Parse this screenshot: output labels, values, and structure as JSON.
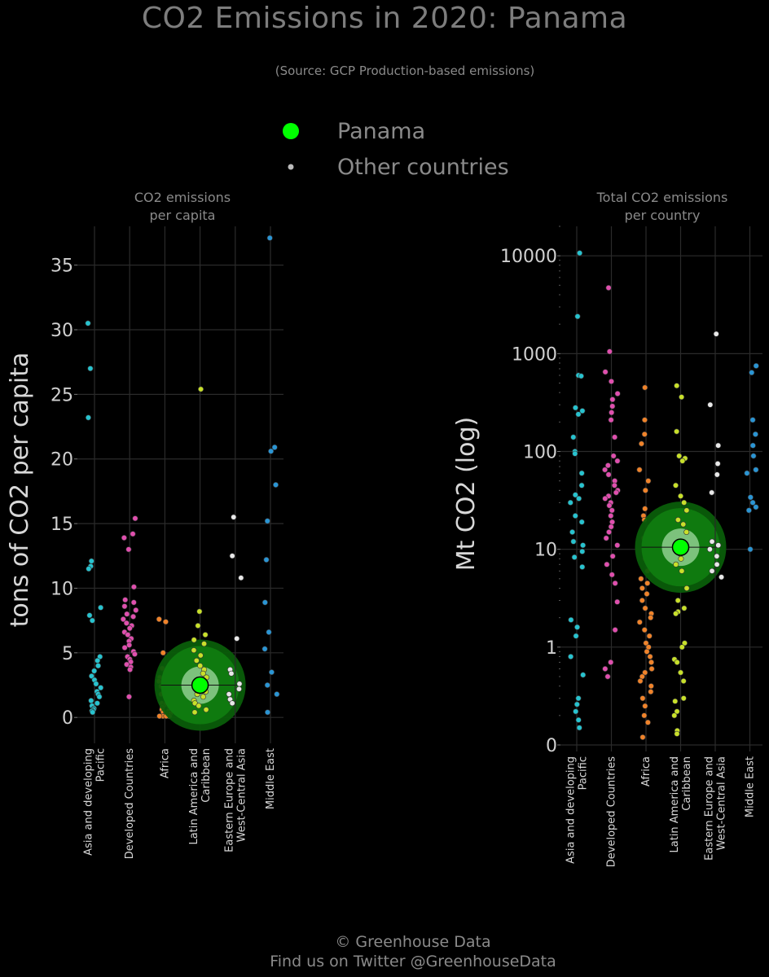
{
  "title": "CO2 Emissions in 2020: Panama",
  "subtitle": "(Source: GCP Production-based emissions)",
  "legend": {
    "highlight": "Panama",
    "others": "Other countries"
  },
  "footer": {
    "line1": "© Greenhouse Data",
    "line2": "Find us on Twitter @GreenhouseData"
  },
  "colors": {
    "background": "#000000",
    "highlight": "#00ff00",
    "halo": "#0b6e0b",
    "Asia and developing Pacific": "#27c3cf",
    "Developed Countries": "#e04fae",
    "Africa": "#f0832a",
    "Latin America and Caribbean": "#c8e02a",
    "Eastern Europe and West-Central Asia": "#e8e8e8",
    "Middle East": "#2a95d4"
  },
  "chart_data": [
    {
      "type": "scatter",
      "panel_title": [
        "CO2 emissions",
        "per capita"
      ],
      "ylabel": "tons of CO2 per capita",
      "scale": "linear",
      "ylim": [
        -1.5,
        38
      ],
      "yticks": [
        0,
        5,
        10,
        15,
        20,
        25,
        30,
        35
      ],
      "ytick_labels": [
        "0",
        "5",
        "10",
        "15",
        "20",
        "25",
        "30",
        "35"
      ],
      "grid": true,
      "categories": [
        {
          "key": "Asia and developing Pacific",
          "label": [
            "Asia and developing",
            "Pacific"
          ],
          "values": [
            30.5,
            27.0,
            23.2,
            12.1,
            11.7,
            11.5,
            8.5,
            7.9,
            7.5,
            4.7,
            4.4,
            4.0,
            3.6,
            3.2,
            2.9,
            2.6,
            2.3,
            2.0,
            1.8,
            1.6,
            1.3,
            1.1,
            0.9,
            0.7,
            0.6,
            0.5,
            0.4
          ]
        },
        {
          "key": "Developed Countries",
          "label": [
            "Developed Countries"
          ],
          "values": [
            15.4,
            14.2,
            13.9,
            13.0,
            10.1,
            9.1,
            8.9,
            8.6,
            8.3,
            8.0,
            7.8,
            7.6,
            7.3,
            7.1,
            6.9,
            6.6,
            6.4,
            6.1,
            5.9,
            5.6,
            5.4,
            5.1,
            4.9,
            4.7,
            4.5,
            4.3,
            4.1,
            3.9,
            3.7,
            1.6
          ]
        },
        {
          "key": "Africa",
          "label": [
            "Africa"
          ],
          "values": [
            7.6,
            7.4,
            5.0,
            3.8,
            3.5,
            3.1,
            2.8,
            2.6,
            2.4,
            2.2,
            2.0,
            1.8,
            1.6,
            1.4,
            1.3,
            1.1,
            1.0,
            0.9,
            0.8,
            0.7,
            0.6,
            0.5,
            0.4,
            0.3,
            0.3,
            0.2,
            0.2,
            0.1,
            0.1,
            0.1,
            0.1
          ]
        },
        {
          "key": "Latin America and Caribbean",
          "label": [
            "Latin America and",
            "Caribbean"
          ],
          "values": [
            25.4,
            8.2,
            7.1,
            6.4,
            6.0,
            5.7,
            5.2,
            4.8,
            4.4,
            4.0,
            3.7,
            3.4,
            3.1,
            2.8,
            2.6,
            2.4,
            2.2,
            2.0,
            1.8,
            1.6,
            1.3,
            1.1,
            0.9,
            0.6,
            0.4
          ],
          "highlight": {
            "name": "Panama",
            "value": 2.5
          }
        },
        {
          "key": "Eastern Europe and West-Central Asia",
          "label": [
            "Eastern Europe and",
            "West-Central Asia"
          ],
          "values": [
            15.5,
            12.5,
            10.8,
            6.1,
            3.7,
            3.4,
            2.6,
            2.2,
            1.8,
            1.4,
            1.1
          ]
        },
        {
          "key": "Middle East",
          "label": [
            "Middle East"
          ],
          "values": [
            37.1,
            20.9,
            20.6,
            18.0,
            15.2,
            12.2,
            8.9,
            6.6,
            5.3,
            3.5,
            2.5,
            1.8,
            0.4
          ]
        }
      ]
    },
    {
      "type": "scatter",
      "panel_title": [
        "Total CO2 emissions",
        "per country"
      ],
      "ylabel": "Mt CO2 (log)",
      "scale": "log",
      "ylim": [
        0.1,
        20000
      ],
      "yticks": [
        0.1,
        1,
        10,
        100,
        1000,
        10000
      ],
      "ytick_labels": [
        "0",
        "1",
        "10",
        "100",
        "1000",
        "10000"
      ],
      "grid": true,
      "categories": [
        {
          "key": "Asia and developing Pacific",
          "label": [
            "Asia and developing",
            "Pacific"
          ],
          "values": [
            10670,
            2400,
            600,
            590,
            280,
            260,
            240,
            140,
            100,
            95,
            60,
            45,
            36,
            33,
            30,
            22,
            19,
            15,
            12,
            11,
            9.5,
            8.3,
            6.6,
            1.9,
            1.6,
            1.3,
            0.8,
            0.52,
            0.3,
            0.26,
            0.22,
            0.18,
            0.15
          ]
        },
        {
          "key": "Developed Countries",
          "label": [
            "Developed Countries"
          ],
          "values": [
            4710,
            1050,
            650,
            520,
            390,
            340,
            290,
            250,
            210,
            140,
            90,
            80,
            72,
            65,
            58,
            50,
            45,
            40,
            38,
            35,
            33,
            30,
            28,
            25,
            22,
            19,
            17,
            15,
            13,
            11,
            8.5,
            7,
            5.5,
            4.5,
            2.9,
            1.5,
            0.7,
            0.6,
            0.5
          ]
        },
        {
          "key": "Africa",
          "label": [
            "Africa"
          ],
          "values": [
            450,
            210,
            150,
            120,
            65,
            50,
            40,
            26,
            22,
            20,
            17,
            15,
            13,
            12,
            10,
            9,
            8,
            7,
            6.5,
            6,
            5,
            4.5,
            4,
            3.5,
            3,
            2.5,
            2.2,
            2,
            1.8,
            1.5,
            1.3,
            1.1,
            1.0,
            0.9,
            0.8,
            0.7,
            0.6,
            0.55,
            0.5,
            0.45,
            0.4,
            0.35,
            0.3,
            0.25,
            0.2,
            0.17,
            0.12
          ]
        },
        {
          "key": "Latin America and Caribbean",
          "label": [
            "Latin America and",
            "Caribbean"
          ],
          "values": [
            470,
            360,
            160,
            90,
            85,
            80,
            45,
            35,
            30,
            25,
            20,
            18,
            15,
            12,
            11,
            9,
            8,
            7,
            6,
            4,
            3,
            2.5,
            2.3,
            2.2,
            1.1,
            1.0,
            0.75,
            0.7,
            0.55,
            0.45,
            0.3,
            0.28,
            0.22,
            0.2,
            0.14,
            0.13
          ]
        },
        {
          "key": "Eastern Europe and West-Central Asia",
          "label": [
            "Eastern Europe and",
            "West-Central Asia"
          ],
          "values": [
            1590,
            300,
            115,
            75,
            58,
            38,
            12,
            11,
            10,
            8.5,
            7,
            6,
            5.2
          ]
        },
        {
          "key": "Middle East",
          "label": [
            "Middle East"
          ],
          "values": [
            750,
            640,
            210,
            150,
            115,
            90,
            65,
            60,
            34,
            30,
            27,
            25,
            10
          ]
        }
      ],
      "highlight_category": "Latin America and Caribbean",
      "highlight": {
        "name": "Panama",
        "value": 10.5
      }
    }
  ]
}
